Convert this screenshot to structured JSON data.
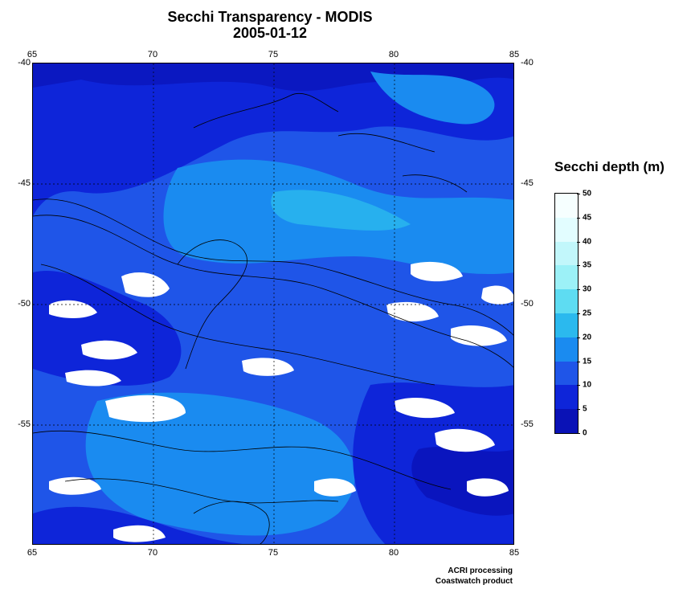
{
  "title": "Secchi Transparency - MODIS",
  "date": "2005-01-12",
  "map": {
    "lon_ticks": [
      "65",
      "70",
      "75",
      "80",
      "85"
    ],
    "lat_ticks": [
      "-40",
      "-45",
      "-50",
      "-55"
    ],
    "lon_range": [
      65,
      85
    ],
    "lat_range": [
      -60,
      -40
    ],
    "graticule": "dotted",
    "no_data_color": "#ffffff"
  },
  "legend": {
    "title": "Secchi depth (m)",
    "labels": [
      "50",
      "45",
      "40",
      "35",
      "30",
      "25",
      "20",
      "15",
      "10",
      "5",
      "0"
    ],
    "colors": [
      "#f6ffff",
      "#e2fdff",
      "#c2f7fb",
      "#9cf1f7",
      "#5edcf2",
      "#2bb9ee",
      "#1a8bf0",
      "#1f55e8",
      "#0e25d9",
      "#0a12b6"
    ]
  },
  "credits": {
    "line1": "ACRI processing",
    "line2": "Coastwatch product"
  }
}
